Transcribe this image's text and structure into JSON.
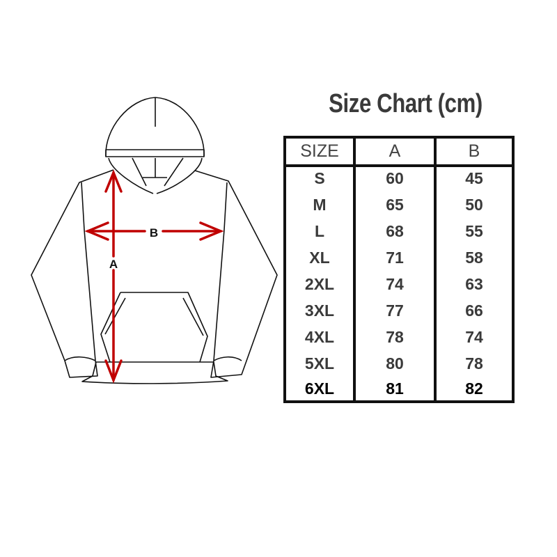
{
  "title": "Size Chart (cm)",
  "diagram": {
    "label_a": "A",
    "label_b": "B",
    "arrow_color": "#c00000"
  },
  "table": {
    "headers": [
      "SIZE",
      "A",
      "B"
    ],
    "rows": [
      [
        "S",
        "60",
        "45"
      ],
      [
        "M",
        "65",
        "50"
      ],
      [
        "L",
        "68",
        "55"
      ],
      [
        "XL",
        "71",
        "58"
      ],
      [
        "2XL",
        "74",
        "63"
      ],
      [
        "3XL",
        "77",
        "66"
      ],
      [
        "4XL",
        "78",
        "74"
      ],
      [
        "5XL",
        "80",
        "78"
      ],
      [
        "6XL",
        "81",
        "82"
      ]
    ]
  }
}
